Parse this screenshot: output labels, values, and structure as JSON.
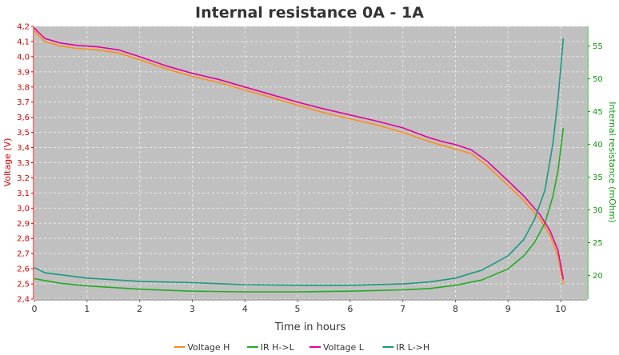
{
  "chart_data": {
    "type": "line",
    "title": "Internal resistance  0A - 1A",
    "xlabel": "Time in hours",
    "ylabel_left": "Voltage (V)",
    "ylabel_right": "Internal resistance (mOhm)",
    "xlim": [
      0,
      10.5
    ],
    "ylim_left": [
      2.4,
      4.2
    ],
    "ylim_right": [
      16.4,
      58
    ],
    "x_ticks": [
      0,
      1,
      2,
      3,
      4,
      5,
      6,
      7,
      8,
      9,
      10
    ],
    "y_left_ticks": [
      "2,4",
      "2,5",
      "2,6",
      "2,7",
      "2,8",
      "2,9",
      "3,0",
      "3,1",
      "3,2",
      "3,3",
      "3,4",
      "3,5",
      "3,6",
      "3,7",
      "3,8",
      "3,9",
      "4,0",
      "4,1",
      "4,2"
    ],
    "y_left_tick_values": [
      2.4,
      2.5,
      2.6,
      2.7,
      2.8,
      2.9,
      3.0,
      3.1,
      3.2,
      3.3,
      3.4,
      3.5,
      3.6,
      3.7,
      3.8,
      3.9,
      4.0,
      4.1,
      4.2
    ],
    "y_right_ticks": [
      20,
      25,
      30,
      35,
      40,
      45,
      50,
      55
    ],
    "grid": true,
    "legend_position": "bottom",
    "legend": [
      "Voltage H",
      "IR H->L",
      "Voltage L",
      "IR L->H"
    ],
    "series": [
      {
        "name": "Voltage H",
        "axis": "left",
        "color": "#ff8c1a",
        "x": [
          0,
          0.05,
          0.2,
          0.5,
          0.8,
          1.2,
          1.6,
          2.0,
          2.5,
          3.0,
          3.5,
          4.0,
          4.5,
          5.0,
          5.5,
          6.0,
          6.5,
          7.0,
          7.5,
          7.8,
          8.0,
          8.3,
          8.6,
          9.0,
          9.3,
          9.6,
          9.8,
          9.95,
          10.05
        ],
        "y": [
          4.17,
          4.15,
          4.1,
          4.07,
          4.055,
          4.045,
          4.025,
          3.98,
          3.92,
          3.87,
          3.83,
          3.78,
          3.73,
          3.68,
          3.63,
          3.59,
          3.55,
          3.5,
          3.44,
          3.41,
          3.39,
          3.36,
          3.28,
          3.15,
          3.05,
          2.93,
          2.82,
          2.68,
          2.5
        ]
      },
      {
        "name": "IR H->L",
        "axis": "right",
        "color": "#22aa22",
        "x": [
          0,
          0.5,
          1,
          2,
          3,
          4,
          5,
          6,
          7,
          7.5,
          8,
          8.5,
          9,
          9.3,
          9.5,
          9.7,
          9.85,
          9.95,
          10.05
        ],
        "y": [
          19.5,
          18.8,
          18.4,
          17.9,
          17.6,
          17.5,
          17.5,
          17.6,
          17.8,
          18,
          18.5,
          19.3,
          21,
          23,
          25,
          28,
          32,
          36,
          42.5
        ]
      },
      {
        "name": "Voltage L",
        "axis": "left",
        "color": "#e6009a",
        "x": [
          0,
          0.05,
          0.2,
          0.5,
          0.8,
          1.2,
          1.6,
          2.0,
          2.5,
          3.0,
          3.5,
          4.0,
          4.5,
          5.0,
          5.5,
          6.0,
          6.5,
          7.0,
          7.5,
          7.8,
          8.0,
          8.3,
          8.6,
          9.0,
          9.3,
          9.6,
          9.8,
          9.95,
          10.05
        ],
        "y": [
          4.19,
          4.17,
          4.12,
          4.09,
          4.075,
          4.065,
          4.045,
          4.0,
          3.94,
          3.89,
          3.85,
          3.8,
          3.75,
          3.7,
          3.655,
          3.615,
          3.575,
          3.53,
          3.465,
          3.435,
          3.42,
          3.385,
          3.31,
          3.18,
          3.08,
          2.96,
          2.85,
          2.72,
          2.53
        ]
      },
      {
        "name": "IR L->H",
        "axis": "right",
        "color": "#1a9980",
        "x": [
          0,
          0.2,
          0.5,
          1,
          2,
          3,
          4,
          5,
          6,
          7,
          7.5,
          8,
          8.5,
          9,
          9.3,
          9.5,
          9.7,
          9.85,
          9.95,
          10.05
        ],
        "y": [
          21.2,
          20.4,
          20.1,
          19.6,
          19.1,
          18.9,
          18.6,
          18.5,
          18.5,
          18.7,
          19,
          19.6,
          20.8,
          23,
          25.5,
          28.5,
          33,
          40,
          47,
          56.2
        ]
      }
    ]
  }
}
